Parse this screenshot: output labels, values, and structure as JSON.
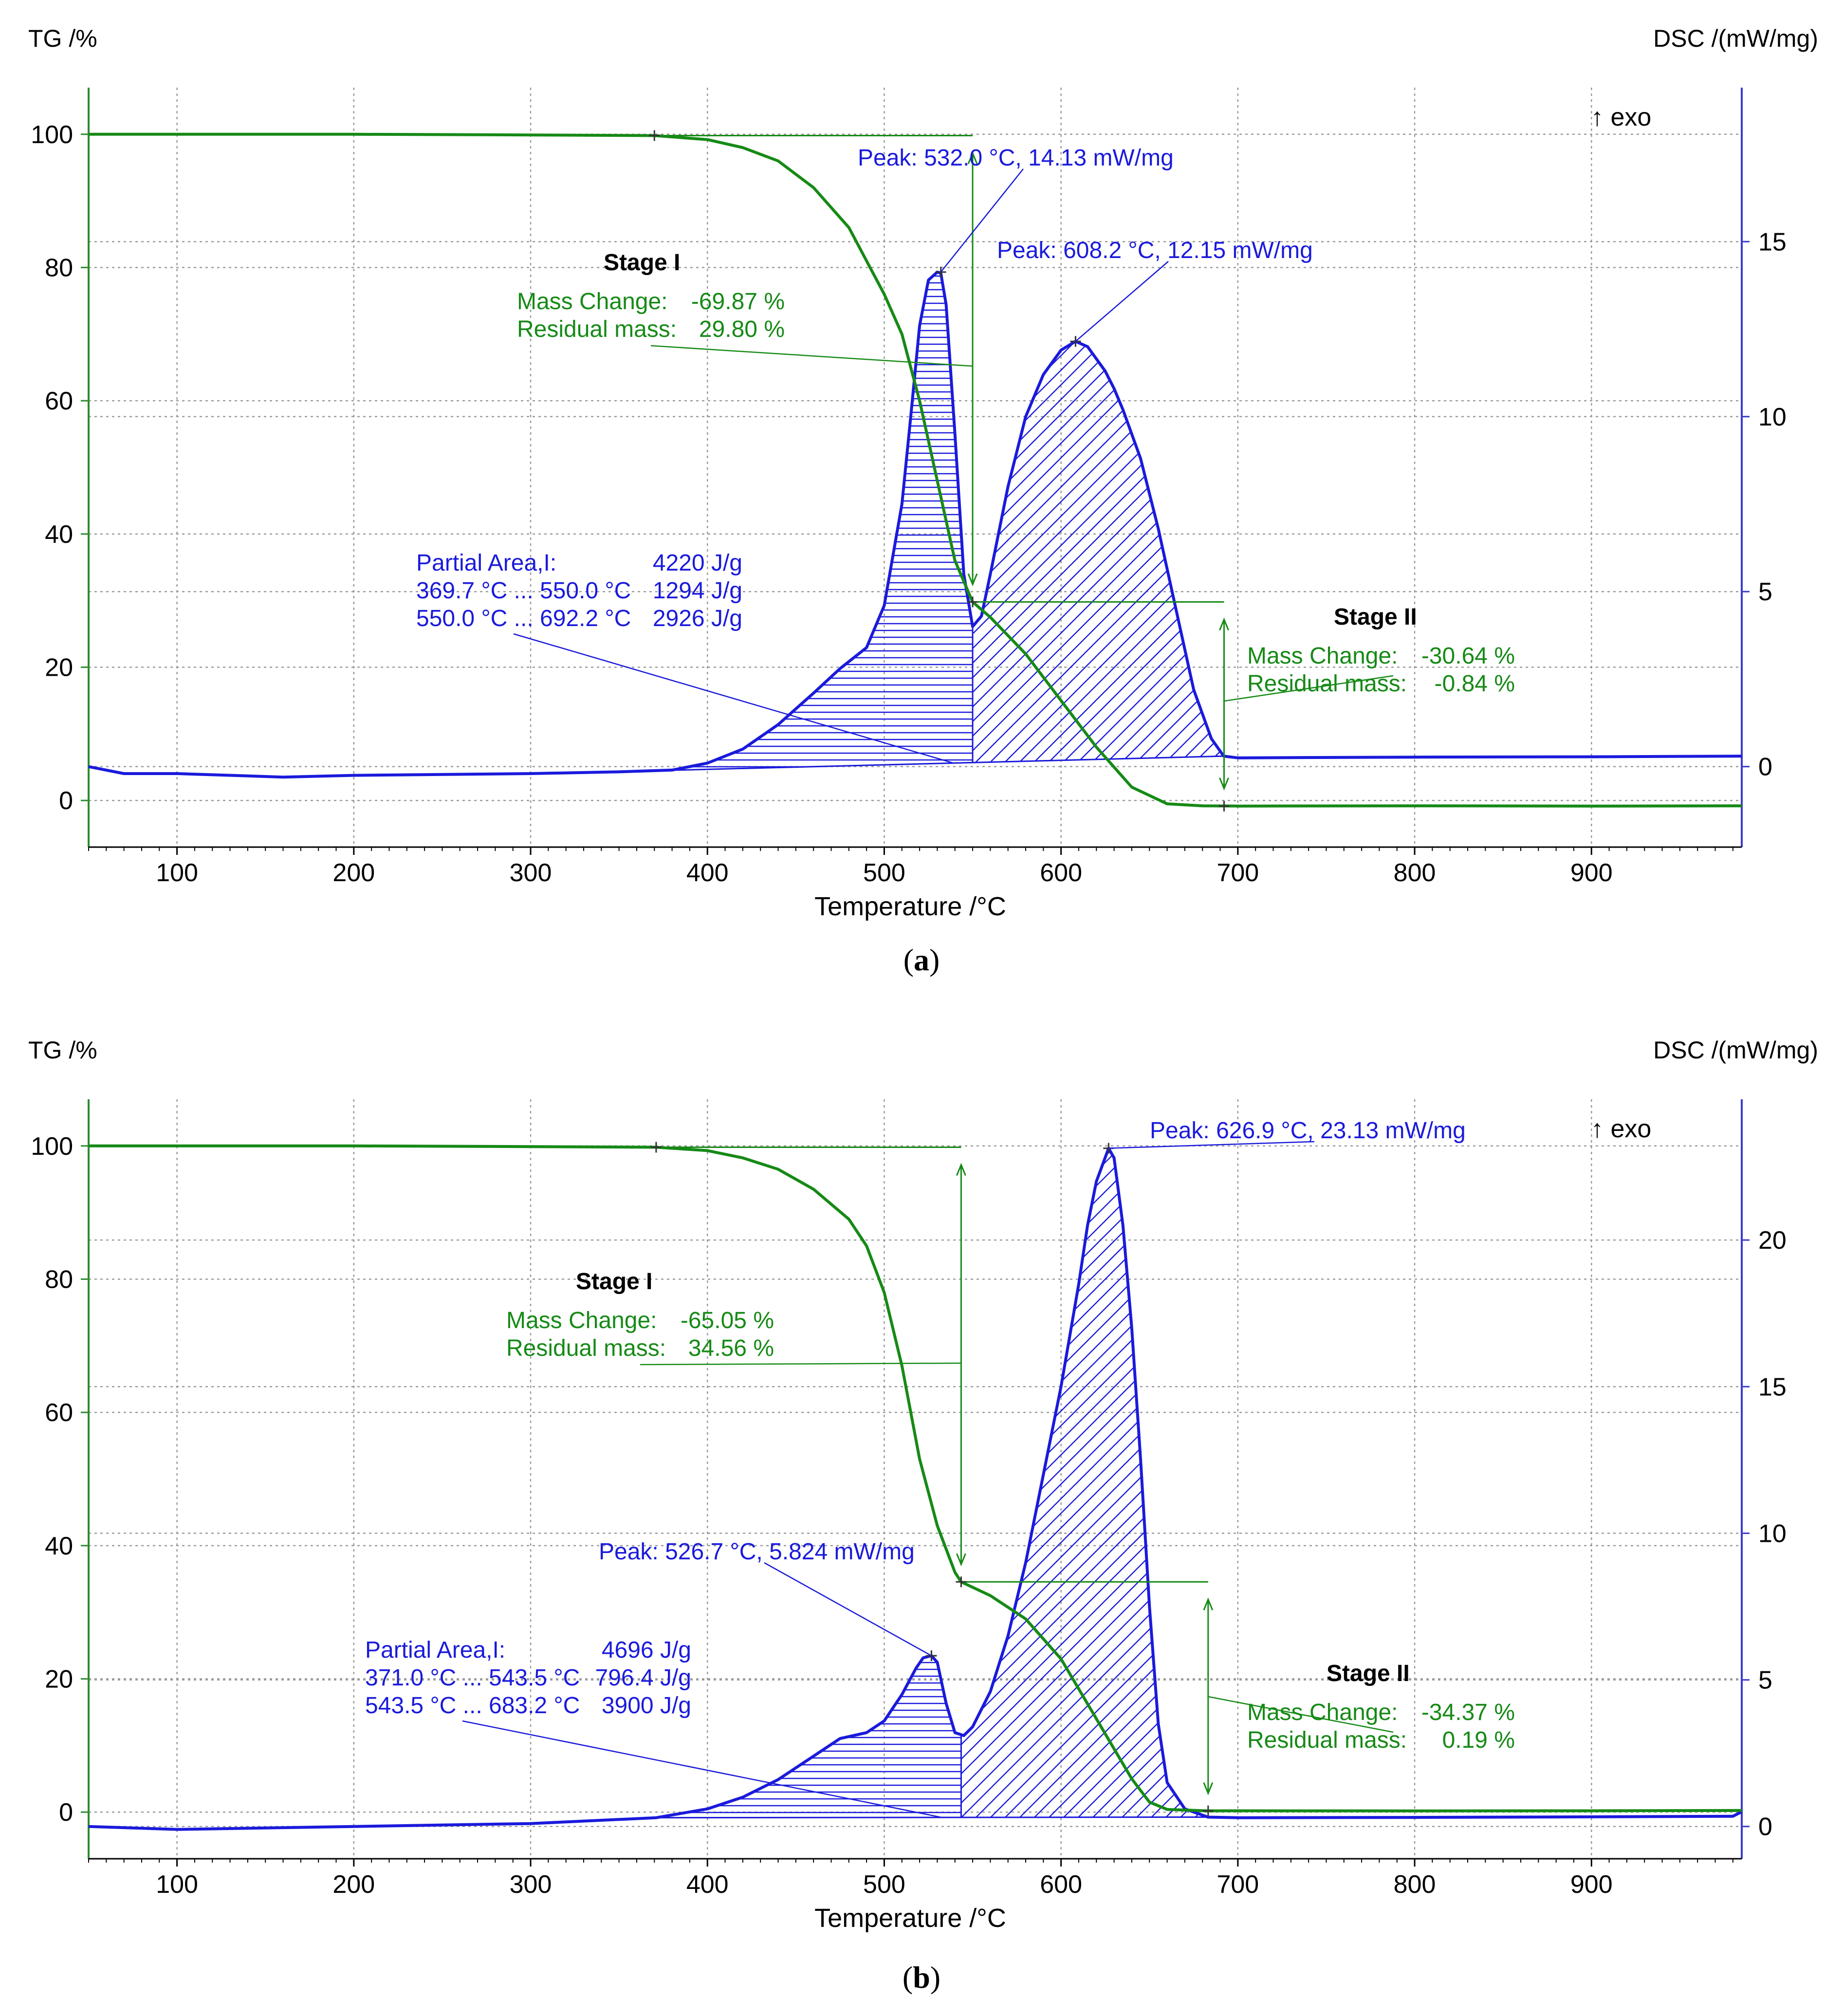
{
  "chart_data": [
    {
      "type": "line",
      "panel_label": "a",
      "ylabel_left": "TG /%",
      "ylabel_right": "DSC /(mW/mg)",
      "xlabel": "Temperature /°C",
      "exo_label": "↑ exo",
      "xlim": [
        50,
        985
      ],
      "ylim_left": [
        -7,
        107
      ],
      "ylim_right": [
        -2.3,
        19.4
      ],
      "x_ticks": [
        100,
        200,
        300,
        400,
        500,
        600,
        700,
        800,
        900
      ],
      "y_ticks_left": [
        0,
        20,
        40,
        60,
        80,
        100
      ],
      "y_ticks_right": [
        0,
        5,
        10,
        15
      ],
      "series": [
        {
          "name": "TG",
          "axis": "left",
          "color": "#168a16",
          "x": [
            50,
            100,
            200,
            300,
            370,
            400,
            420,
            440,
            460,
            480,
            500,
            510,
            520,
            530,
            540,
            550,
            560,
            580,
            600,
            620,
            640,
            660,
            680,
            700,
            800,
            900,
            985
          ],
          "y": [
            100,
            100,
            100,
            99.9,
            99.8,
            99.2,
            98,
            96,
            92,
            86,
            76,
            70,
            60,
            48,
            36,
            29.8,
            27.5,
            22,
            15,
            8,
            2,
            -0.5,
            -0.8,
            -0.84,
            -0.8,
            -0.85,
            -0.8
          ]
        },
        {
          "name": "DSC",
          "axis": "right",
          "color": "#1a1adc",
          "x": [
            50,
            70,
            100,
            160,
            200,
            300,
            350,
            380,
            400,
            420,
            440,
            460,
            475,
            490,
            500,
            510,
            515,
            520,
            525,
            530,
            532,
            535,
            540,
            545,
            550,
            555,
            560,
            570,
            580,
            590,
            600,
            608.2,
            615,
            625,
            630,
            635,
            645,
            655,
            665,
            675,
            685,
            692,
            700,
            800,
            900,
            985
          ],
          "y": [
            0,
            -0.2,
            -0.2,
            -0.3,
            -0.25,
            -0.2,
            -0.15,
            -0.1,
            0.1,
            0.5,
            1.2,
            2.1,
            2.8,
            3.4,
            4.6,
            7.5,
            10,
            12.6,
            13.9,
            14.13,
            14.1,
            13.2,
            9.5,
            5.5,
            4.0,
            4.3,
            5.5,
            8,
            10,
            11.2,
            11.9,
            12.15,
            12.0,
            11.3,
            10.8,
            10.2,
            8.8,
            6.8,
            4.5,
            2.2,
            0.8,
            0.3,
            0.25,
            0.27,
            0.28,
            0.3
          ]
        }
      ],
      "stage1": {
        "title": "Stage I",
        "mass_change_label": "Mass Change:",
        "mass_change_value": "-69.87 %",
        "residual_label": "Residual mass:",
        "residual_value": "29.80 %",
        "onset_x": 370,
        "end_x": 550,
        "tg_start": 99.8,
        "tg_end": 29.8
      },
      "stage2": {
        "title": "Stage II",
        "mass_change_label": "Mass Change:",
        "mass_change_value": "-30.64 %",
        "residual_label": "Residual mass:",
        "residual_value": "-0.84 %",
        "end_x": 692.2,
        "tg_end": -0.84
      },
      "peaks": [
        {
          "label": "Peak: 532.0 °C, 14.13 mW/mg",
          "x": 532.0,
          "y": 14.13
        },
        {
          "label": "Peak: 608.2 °C, 12.15 mW/mg",
          "x": 608.2,
          "y": 12.15
        }
      ],
      "partial_area": {
        "line1_label": "Partial Area,I:",
        "line1_value": "4220 J/g",
        "line2_range": "369.7 °C ... 550.0 °C",
        "line2_value": "1294 J/g",
        "line3_range": "550.0 °C ... 692.2 °C",
        "line3_value": "2926 J/g",
        "start_x": 369.7,
        "split_x": 550.0,
        "end_x": 692.2
      }
    },
    {
      "type": "line",
      "panel_label": "b",
      "ylabel_left": "TG /%",
      "ylabel_right": "DSC /(mW/mg)",
      "xlabel": "Temperature /°C",
      "exo_label": "↑ exo",
      "xlim": [
        50,
        985
      ],
      "ylim_left": [
        -7,
        107
      ],
      "ylim_right": [
        -1.1,
        24.8
      ],
      "x_ticks": [
        100,
        200,
        300,
        400,
        500,
        600,
        700,
        800,
        900
      ],
      "y_ticks_left": [
        0,
        20,
        40,
        60,
        80,
        100
      ],
      "y_ticks_right": [
        0,
        5,
        10,
        15,
        20
      ],
      "series": [
        {
          "name": "TG",
          "axis": "left",
          "color": "#168a16",
          "x": [
            50,
            100,
            200,
            300,
            371,
            400,
            420,
            440,
            460,
            480,
            490,
            500,
            510,
            520,
            530,
            540,
            543.5,
            560,
            580,
            600,
            620,
            640,
            650,
            660,
            683,
            700,
            800,
            900,
            985
          ],
          "y": [
            100,
            100,
            100,
            99.9,
            99.8,
            99.3,
            98.2,
            96.5,
            93.5,
            89,
            85,
            78,
            67,
            53,
            43,
            36,
            34.56,
            32.5,
            29,
            23,
            14,
            5,
            1.5,
            0.4,
            0.19,
            0.2,
            0.18,
            0.2,
            0.25
          ]
        },
        {
          "name": "DSC",
          "axis": "right",
          "color": "#1a1adc",
          "x": [
            50,
            100,
            200,
            300,
            371,
            400,
            420,
            440,
            460,
            475,
            490,
            500,
            510,
            518,
            522,
            526.7,
            530,
            535,
            540,
            545,
            550,
            560,
            570,
            580,
            590,
            600,
            610,
            615,
            620,
            626.9,
            630,
            635,
            640,
            645,
            650,
            655,
            660,
            670,
            683.2,
            700,
            800,
            900,
            980,
            985
          ],
          "y": [
            0,
            -0.1,
            0,
            0.1,
            0.3,
            0.6,
            1.0,
            1.6,
            2.4,
            3.0,
            3.2,
            3.6,
            4.5,
            5.4,
            5.75,
            5.824,
            5.6,
            4.2,
            3.2,
            3.1,
            3.4,
            4.6,
            6.5,
            9,
            12,
            15,
            18.5,
            20.5,
            22,
            23.13,
            22.8,
            20.5,
            17,
            12.5,
            7.5,
            3.5,
            1.5,
            0.6,
            0.32,
            0.3,
            0.31,
            0.33,
            0.35,
            0.5
          ]
        }
      ],
      "stage1": {
        "title": "Stage I",
        "mass_change_label": "Mass Change:",
        "mass_change_value": "-65.05 %",
        "residual_label": "Residual mass:",
        "residual_value": "34.56 %",
        "onset_x": 371,
        "end_x": 543.5,
        "tg_start": 99.8,
        "tg_end": 34.56
      },
      "stage2": {
        "title": "Stage II",
        "mass_change_label": "Mass Change:",
        "mass_change_value": "-34.37 %",
        "residual_label": "Residual mass:",
        "residual_value": "0.19 %",
        "end_x": 683.2,
        "tg_end": 0.19
      },
      "peaks": [
        {
          "label": "Peak: 626.9 °C, 23.13 mW/mg",
          "x": 626.9,
          "y": 23.13
        },
        {
          "label": "Peak: 526.7 °C, 5.824 mW/mg",
          "x": 526.7,
          "y": 5.824
        }
      ],
      "partial_area": {
        "line1_label": "Partial Area,I:",
        "line1_value": "4696 J/g",
        "line2_range": "371.0 °C ... 543.5 °C",
        "line2_value": "796.4 J/g",
        "line3_range": "543.5 °C ... 683.2 °C",
        "line3_value": "3900 J/g",
        "start_x": 371.0,
        "split_x": 543.5,
        "end_x": 683.2
      }
    }
  ]
}
